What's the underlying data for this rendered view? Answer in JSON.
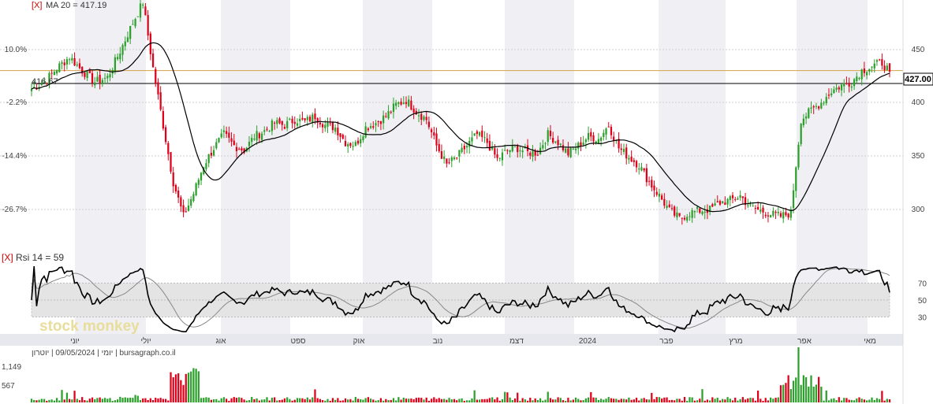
{
  "colors": {
    "up": "#2ca02c",
    "down": "#e0001a",
    "ma": "#000000",
    "rsi": "#000000",
    "rsi_signal": "#888888",
    "resistance": "#d4a34a",
    "price_line": "#000000",
    "shade": "#f0f0f4",
    "axis_band": "#e6e8ee",
    "close_x": "#cc0000"
  },
  "price_panel": {
    "close_x": "[X]",
    "ma_label": "MA 20 = 417.19",
    "pct_ticks": [
      "10.0%",
      "-2.2%",
      "-14.4%",
      "-26.7%"
    ],
    "price_ticks": [
      "450",
      "400",
      "350",
      "300"
    ],
    "current_price_tag": "427.00",
    "reference_price_tag": "416.67"
  },
  "rsi_panel": {
    "close_x": "[X]",
    "label": "Rsi 14 = 59",
    "ticks": [
      "70",
      "50",
      "30"
    ],
    "watermark": "stock monkey"
  },
  "x_axis": {
    "labels": [
      "יוני",
      "יולי",
      "אוג",
      "ספט",
      "אוק",
      "נוב",
      "דצמ",
      "2024",
      "פבר",
      "מרץ",
      "אפר",
      "מאי"
    ]
  },
  "volume_panel": {
    "info": "יומי | 09/05/2024 | יוטרון | bursagraph.co.il",
    "ticks": [
      "1,149",
      "567"
    ]
  },
  "chart_data": {
    "type": "candlestick",
    "title": "",
    "x_labels": [
      "יוני",
      "יולי",
      "אוג",
      "ספט",
      "אוק",
      "נוב",
      "דצמ",
      "2024",
      "פבר",
      "מרץ",
      "אפר",
      "מאי"
    ],
    "y_price_ticks": [
      450,
      400,
      350,
      300
    ],
    "y_pct_ticks": [
      "10.0%",
      "-2.2%",
      "-14.4%",
      "-26.7%"
    ],
    "ylim_price": [
      270,
      490
    ],
    "last_close": 427.0,
    "reference_price": 416.67,
    "resistance_level": 428,
    "ma": {
      "name": "MA 20",
      "last": 417.19
    },
    "rsi": {
      "name": "Rsi 14",
      "last": 59,
      "levels": [
        70,
        50,
        30
      ],
      "ylim": [
        10,
        90
      ]
    },
    "volume_ticks": [
      1149,
      567
    ],
    "price_anchors": [
      [
        0,
        412
      ],
      [
        5,
        418
      ],
      [
        10,
        430
      ],
      [
        15,
        440
      ],
      [
        20,
        428
      ],
      [
        25,
        418
      ],
      [
        30,
        422
      ],
      [
        35,
        445
      ],
      [
        40,
        470
      ],
      [
        44,
        488
      ],
      [
        48,
        430
      ],
      [
        52,
        380
      ],
      [
        56,
        330
      ],
      [
        60,
        300
      ],
      [
        64,
        320
      ],
      [
        68,
        345
      ],
      [
        72,
        360
      ],
      [
        76,
        372
      ],
      [
        80,
        362
      ],
      [
        84,
        358
      ],
      [
        88,
        370
      ],
      [
        92,
        375
      ],
      [
        96,
        382
      ],
      [
        100,
        380
      ],
      [
        104,
        385
      ],
      [
        108,
        383
      ],
      [
        112,
        388
      ],
      [
        116,
        380
      ],
      [
        120,
        378
      ],
      [
        124,
        365
      ],
      [
        128,
        363
      ],
      [
        132,
        378
      ],
      [
        136,
        382
      ],
      [
        140,
        388
      ],
      [
        144,
        398
      ],
      [
        148,
        402
      ],
      [
        152,
        392
      ],
      [
        156,
        385
      ],
      [
        160,
        362
      ],
      [
        164,
        345
      ],
      [
        168,
        352
      ],
      [
        172,
        362
      ],
      [
        176,
        372
      ],
      [
        180,
        365
      ],
      [
        184,
        350
      ],
      [
        188,
        358
      ],
      [
        192,
        360
      ],
      [
        196,
        356
      ],
      [
        200,
        356
      ],
      [
        204,
        372
      ],
      [
        208,
        365
      ],
      [
        212,
        355
      ],
      [
        216,
        362
      ],
      [
        220,
        370
      ],
      [
        224,
        368
      ],
      [
        228,
        380
      ],
      [
        232,
        360
      ],
      [
        236,
        352
      ],
      [
        240,
        345
      ],
      [
        244,
        330
      ],
      [
        248,
        318
      ],
      [
        252,
        305
      ],
      [
        256,
        298
      ],
      [
        260,
        303
      ],
      [
        264,
        305
      ],
      [
        268,
        306
      ],
      [
        272,
        312
      ],
      [
        276,
        314
      ],
      [
        280,
        318
      ],
      [
        284,
        308
      ],
      [
        288,
        305
      ],
      [
        292,
        302
      ],
      [
        296,
        300
      ],
      [
        300,
        303
      ],
      [
        302,
        345
      ],
      [
        304,
        385
      ],
      [
        308,
        393
      ],
      [
        312,
        400
      ],
      [
        316,
        410
      ],
      [
        320,
        415
      ],
      [
        324,
        418
      ],
      [
        328,
        428
      ],
      [
        332,
        432
      ],
      [
        336,
        435
      ],
      [
        339,
        427
      ]
    ]
  }
}
